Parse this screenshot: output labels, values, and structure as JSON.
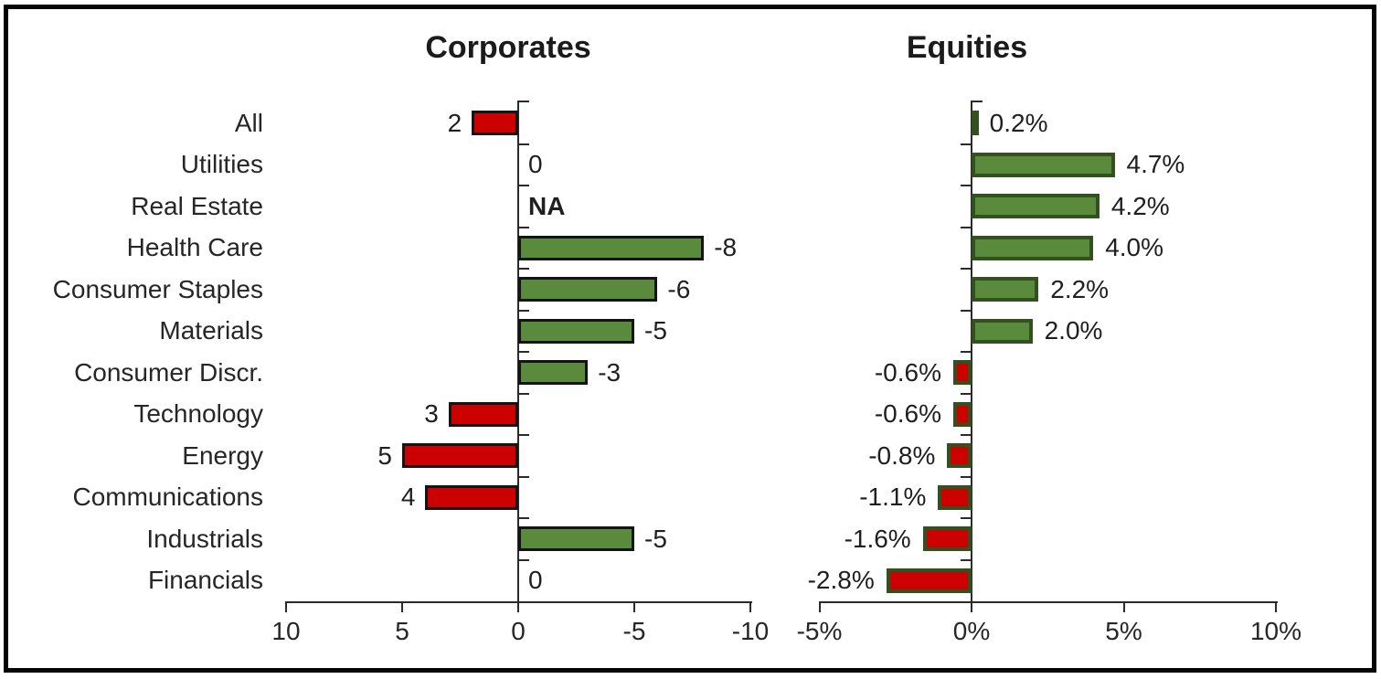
{
  "page": {
    "background": "#ffffff",
    "frame_border_color": "#050505"
  },
  "colors": {
    "red_fill": "#cc0000",
    "green_fill": "#5a8b3c",
    "corporates_bar_border": "#141414",
    "equities_bar_border": "#33511e",
    "axis_line": "#2b2b2b",
    "text": "#262626"
  },
  "categories": [
    "All",
    "Utilities",
    "Real Estate",
    "Health Care",
    "Consumer Staples",
    "Materials",
    "Consumer Discr.",
    "Technology",
    "Energy",
    "Communications",
    "Industrials",
    "Financials"
  ],
  "chart_data": [
    {
      "id": "corporates",
      "type": "bar",
      "orientation": "horizontal",
      "title": "Corporates",
      "categories": [
        "All",
        "Utilities",
        "Real Estate",
        "Health Care",
        "Consumer Staples",
        "Materials",
        "Consumer Discr.",
        "Technology",
        "Energy",
        "Communications",
        "Industrials",
        "Financials"
      ],
      "values": [
        2,
        0,
        null,
        -8,
        -6,
        -5,
        -3,
        3,
        5,
        4,
        -5,
        0
      ],
      "value_labels": [
        "2",
        "0",
        "NA",
        "-8",
        "-6",
        "-5",
        "-3",
        "3",
        "5",
        "4",
        "-5",
        "0"
      ],
      "xlabel": "",
      "ylabel": "",
      "x_axis": {
        "reversed": true,
        "range": [
          10,
          -10
        ],
        "ticks": [
          10,
          5,
          0,
          -5,
          -10
        ],
        "tick_labels": [
          "10",
          "5",
          "0",
          "-5",
          "-10"
        ]
      },
      "positive_bar_color": "#cc0000",
      "negative_bar_color": "#5a8b3c",
      "bar_border_color": "#141414",
      "grid": false,
      "legend": "none"
    },
    {
      "id": "equities",
      "type": "bar",
      "orientation": "horizontal",
      "title": "Equities",
      "categories": [
        "All",
        "Utilities",
        "Real Estate",
        "Health Care",
        "Consumer Staples",
        "Materials",
        "Consumer Discr.",
        "Technology",
        "Energy",
        "Communications",
        "Industrials",
        "Financials"
      ],
      "values": [
        0.2,
        4.7,
        4.2,
        4.0,
        2.2,
        2.0,
        -0.6,
        -0.6,
        -0.8,
        -1.1,
        -1.6,
        -2.8
      ],
      "value_labels": [
        "0.2%",
        "4.7%",
        "4.2%",
        "4.0%",
        "2.2%",
        "2.0%",
        "-0.6%",
        "-0.6%",
        "-0.8%",
        "-1.1%",
        "-1.6%",
        "-2.8%"
      ],
      "xlabel": "",
      "ylabel": "",
      "unit": "%",
      "x_axis": {
        "reversed": false,
        "range": [
          -5,
          10
        ],
        "ticks": [
          -5,
          0,
          5,
          10
        ],
        "tick_labels": [
          "-5%",
          "0%",
          "5%",
          "10%"
        ]
      },
      "positive_bar_color": "#5a8b3c",
      "negative_bar_color": "#cc0000",
      "bar_border_color": "#33511e",
      "grid": false,
      "legend": "none"
    }
  ]
}
